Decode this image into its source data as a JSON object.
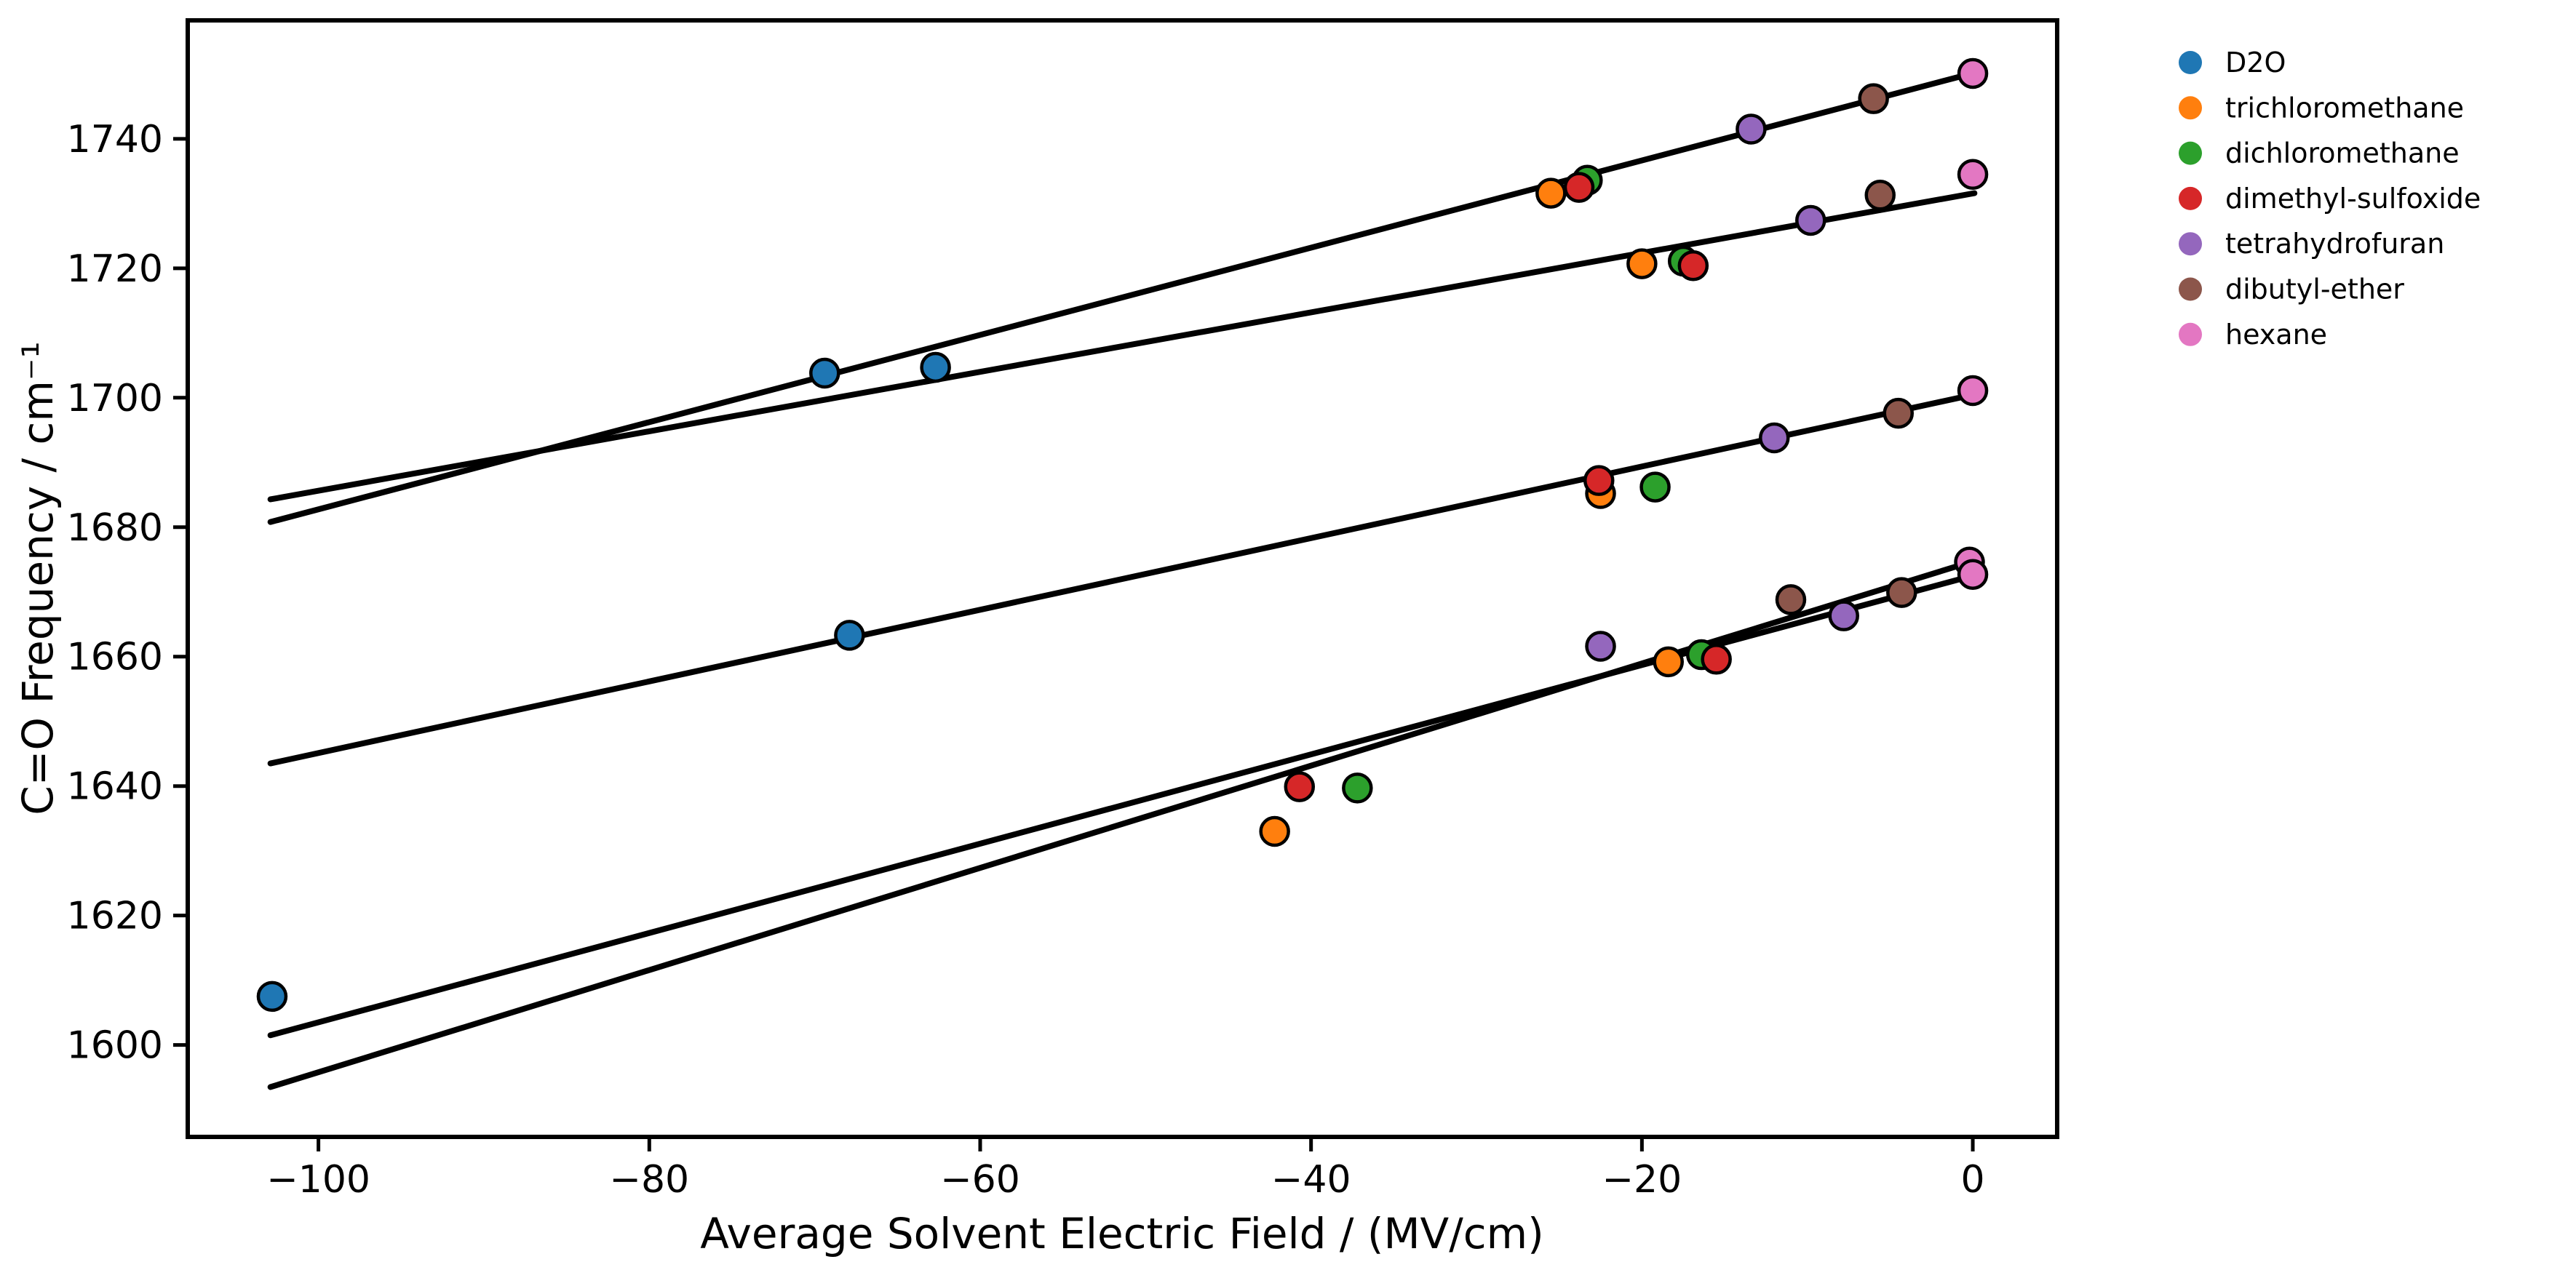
{
  "chart_data": {
    "type": "scatter",
    "title": "",
    "xlabel": "Average Solvent Electric Field / (MV/cm)",
    "ylabel": "C=O Frequency / cm⁻¹",
    "xlim": [
      -107.9,
      5.1
    ],
    "ylim": [
      1585.8,
      1758.3
    ],
    "grid": false,
    "legend_position": "outside-upper-right",
    "axis_color": "#000000",
    "fit_line_color": "#000000",
    "marker_edge_color": "#000000",
    "xticks": {
      "values": [
        -100,
        -80,
        -60,
        -40,
        -20,
        0
      ],
      "labels": [
        "−100",
        "−80",
        "−60",
        "−40",
        "−20",
        "0"
      ]
    },
    "yticks": {
      "values": [
        1600,
        1620,
        1640,
        1660,
        1680,
        1700,
        1720,
        1740
      ],
      "labels": [
        "1600",
        "1620",
        "1640",
        "1660",
        "1680",
        "1700",
        "1720",
        "1740"
      ]
    },
    "series": [
      {
        "name": "D2O",
        "color": "#1f77b4",
        "points": [
          [
            -69.4,
            1703.8
          ],
          [
            -62.7,
            1704.7
          ],
          [
            -67.9,
            1663.3
          ],
          [
            -102.8,
            1607.5
          ]
        ]
      },
      {
        "name": "trichloromethane",
        "color": "#ff7f0e",
        "points": [
          [
            -25.5,
            1731.6
          ],
          [
            -20.0,
            1720.7
          ],
          [
            -22.5,
            1685.2
          ],
          [
            -42.2,
            1633.0
          ],
          [
            -18.4,
            1659.2
          ]
        ]
      },
      {
        "name": "dichloromethane",
        "color": "#2ca02c",
        "points": [
          [
            -23.3,
            1733.6
          ],
          [
            -17.5,
            1721.1
          ],
          [
            -19.2,
            1686.2
          ],
          [
            -37.2,
            1639.7
          ],
          [
            -16.4,
            1660.3
          ]
        ]
      },
      {
        "name": "dimethyl-sulfoxide",
        "color": "#d62728",
        "points": [
          [
            -23.8,
            1732.5
          ],
          [
            -16.9,
            1720.4
          ],
          [
            -22.6,
            1687.2
          ],
          [
            -40.7,
            1639.9
          ],
          [
            -15.5,
            1659.6
          ]
        ]
      },
      {
        "name": "tetrahydrofuran",
        "color": "#9467bd",
        "points": [
          [
            -13.4,
            1741.5
          ],
          [
            -9.8,
            1727.4
          ],
          [
            -12.0,
            1693.8
          ],
          [
            -22.5,
            1661.6
          ],
          [
            -7.8,
            1666.3
          ]
        ]
      },
      {
        "name": "dibutyl-ether",
        "color": "#8c564b",
        "points": [
          [
            -6.0,
            1746.2
          ],
          [
            -5.6,
            1731.3
          ],
          [
            -4.5,
            1697.6
          ],
          [
            -11.0,
            1668.8
          ],
          [
            -4.3,
            1669.9
          ]
        ]
      },
      {
        "name": "hexane",
        "color": "#e377c2",
        "points": [
          [
            0.0,
            1750.1
          ],
          [
            0.0,
            1734.5
          ],
          [
            0.0,
            1701.1
          ],
          [
            -0.2,
            1674.6
          ],
          [
            0.0,
            1672.7
          ]
        ]
      }
    ],
    "fit_lines": [
      {
        "x": [
          -102.9,
          0.1
        ],
        "y": [
          1680.8,
          1750.2
        ]
      },
      {
        "x": [
          -102.9,
          0.1
        ],
        "y": [
          1684.3,
          1731.6
        ]
      },
      {
        "x": [
          -102.9,
          0.1
        ],
        "y": [
          1643.5,
          1700.5
        ]
      },
      {
        "x": [
          -102.9,
          0.0
        ],
        "y": [
          1601.5,
          1672.5
        ]
      },
      {
        "x": [
          -102.9,
          0.1
        ],
        "y": [
          1593.5,
          1674.8
        ]
      }
    ]
  }
}
